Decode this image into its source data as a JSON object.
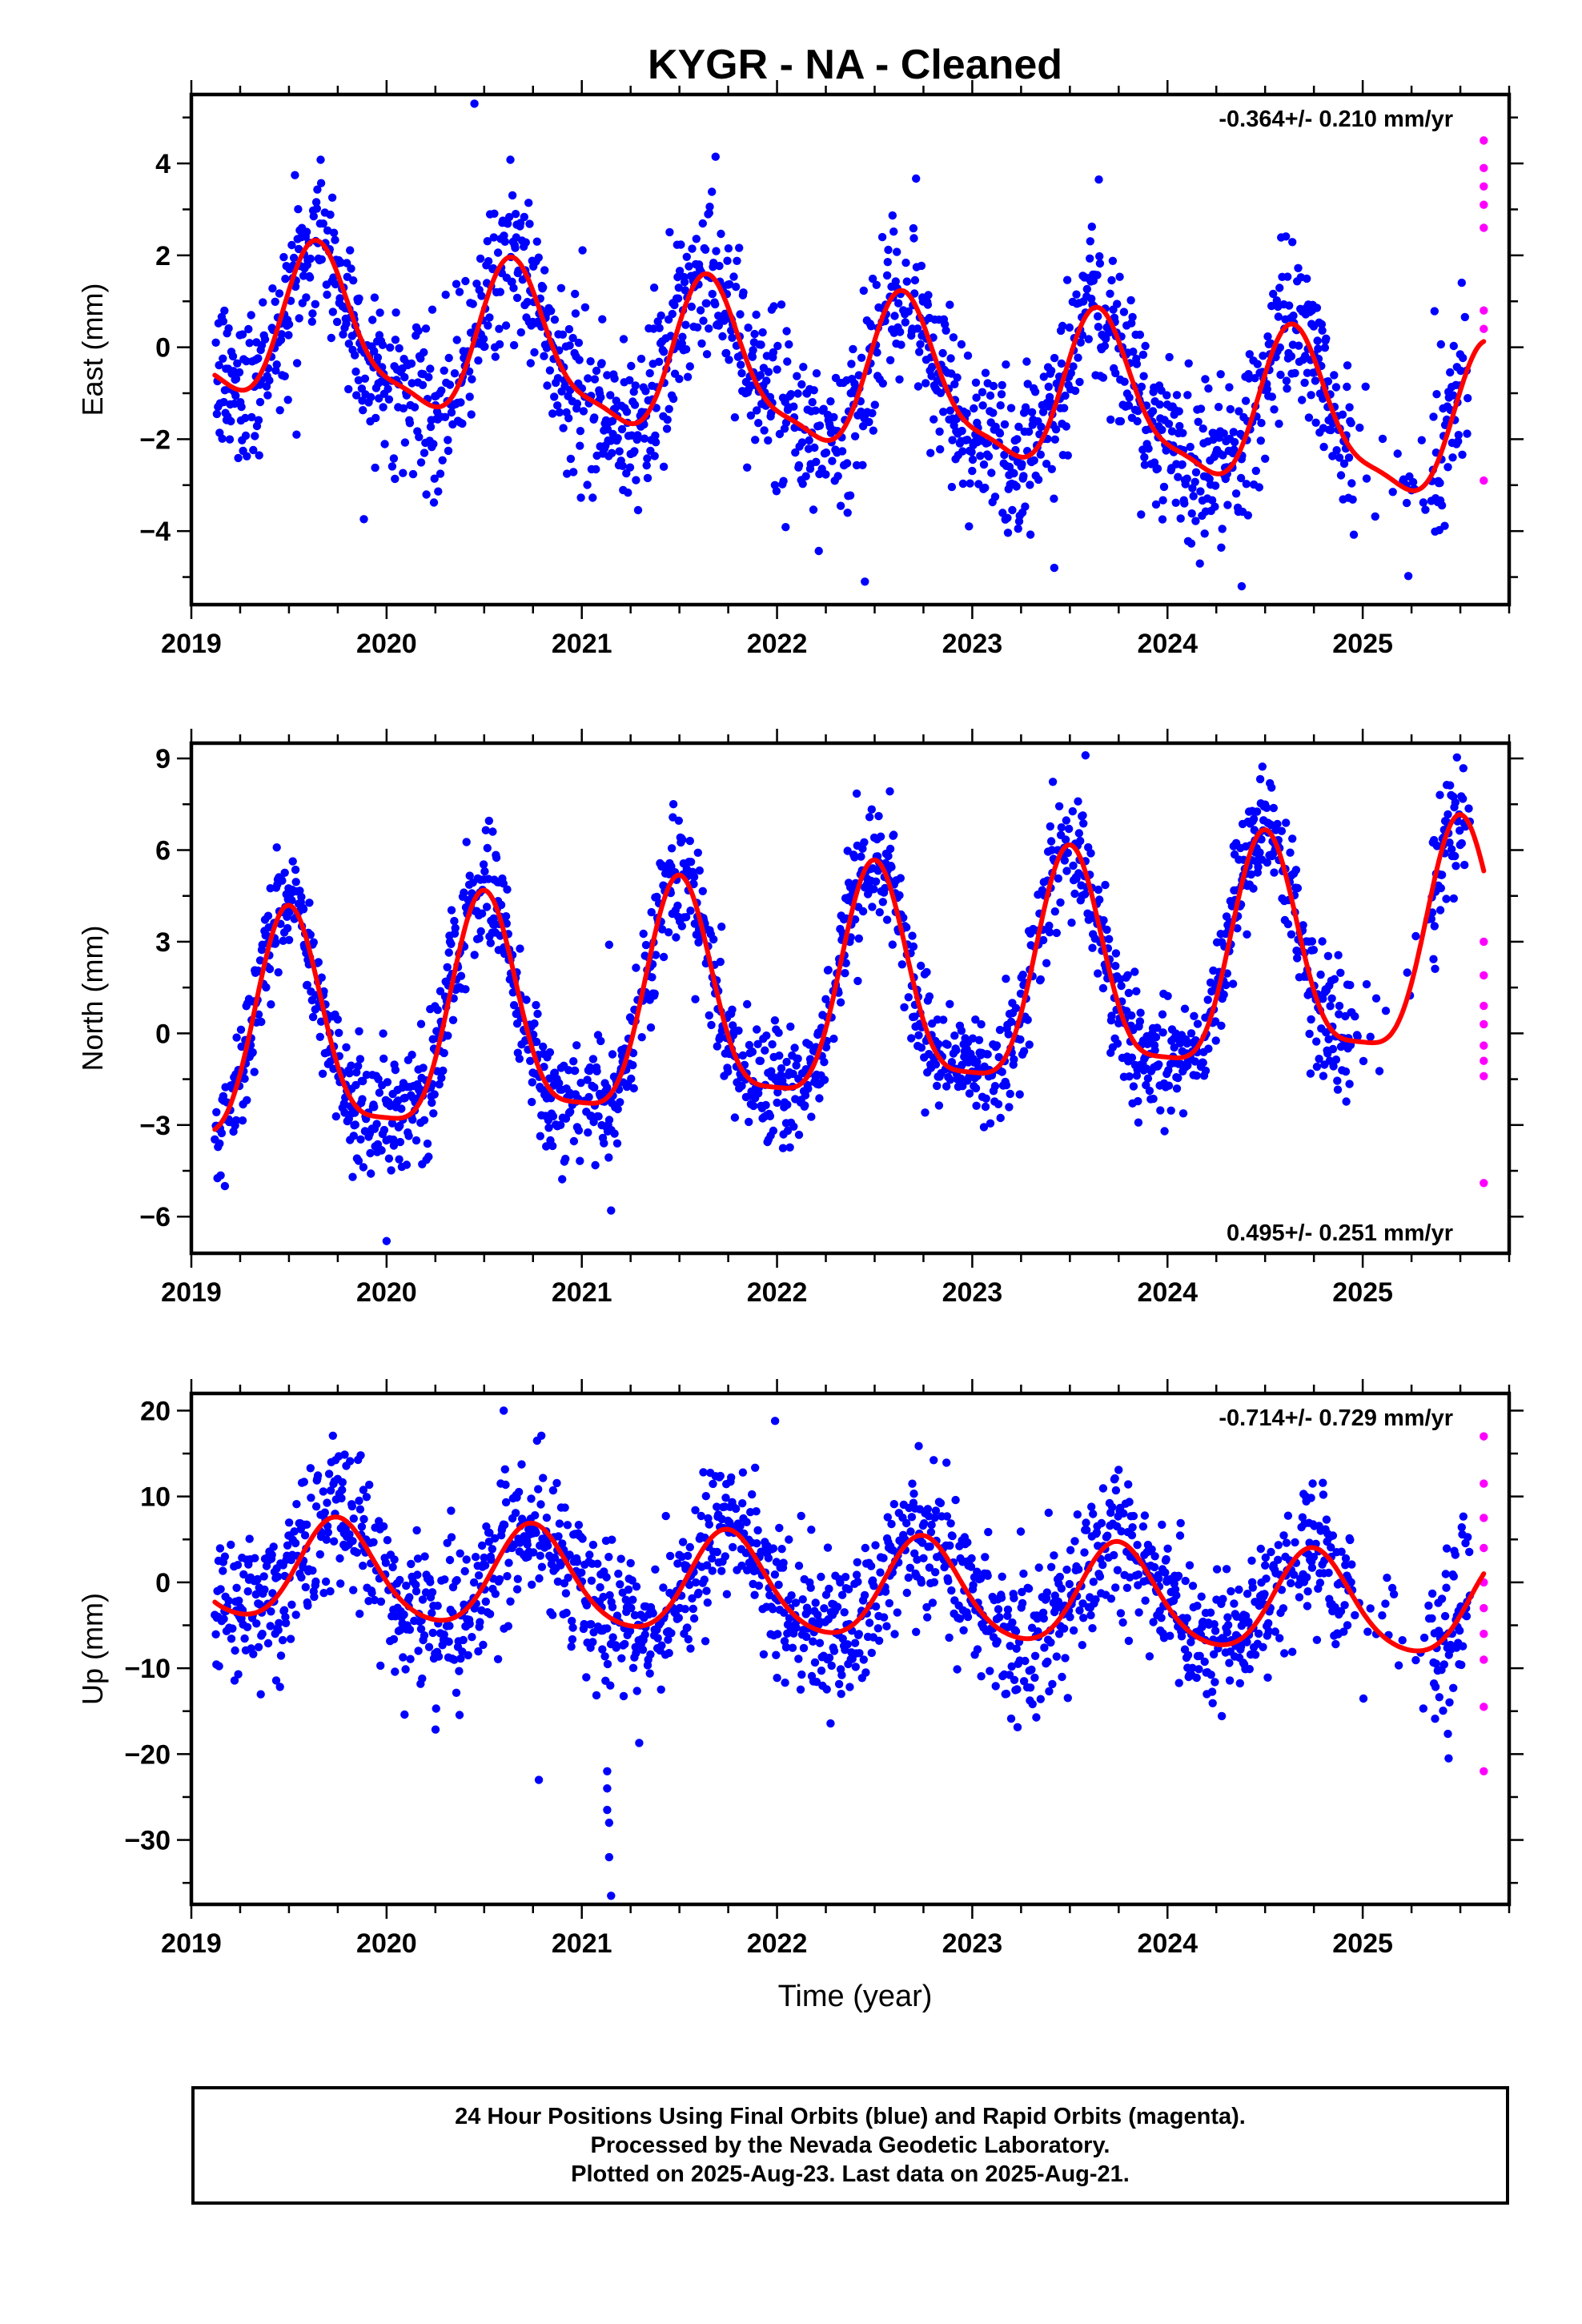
{
  "title": "KYGR  - NA - Cleaned",
  "x_axis_label": "Time (year)",
  "footer": {
    "line1": "24 Hour Positions Using Final Orbits (blue) and Rapid Orbits (magenta).",
    "line2": "Processed by the Nevada Geodetic Laboratory.",
    "line3": "Plotted on 2025-Aug-23. Last data on 2025-Aug-21."
  },
  "colors": {
    "final_orbits": "#0000ff",
    "rapid_orbits": "#ff00ff",
    "model_fit": "#ff0000",
    "axes": "#000000"
  },
  "chart_data": [
    {
      "type": "scatter",
      "name": "east",
      "ylabel": "East (mm)",
      "rate_text": "-0.364+/- 0.210 mm/yr",
      "rate_position": "top-right",
      "xlim": [
        2019.0,
        2025.75
      ],
      "ylim": [
        -5.6,
        5.5
      ],
      "x_ticks": [
        2019,
        2020,
        2021,
        2022,
        2023,
        2024,
        2025
      ],
      "y_ticks": [
        -4,
        -2,
        0,
        2,
        4
      ],
      "model": {
        "mean": 0.5,
        "trend": -0.364,
        "t0": 2019.1,
        "annual_amp": 1.6,
        "annual_peak": 2019.66,
        "semiannual_amp": 0.45,
        "semiannual_phase": 0.5
      },
      "final_orbits_range": [
        2019.12,
        2025.54
      ],
      "noise_sd": 0.9,
      "rapid_orbits": {
        "x": [
          2025.62,
          2025.62,
          2025.62,
          2025.62,
          2025.62,
          2025.62,
          2025.62,
          2025.62
        ],
        "y": [
          4.5,
          3.9,
          3.5,
          3.1,
          2.6,
          0.8,
          0.4,
          -2.9
        ]
      },
      "outliers": {
        "x": [
          2020.45,
          2022.45,
          2023.42,
          2021.42,
          2024.38
        ],
        "y": [
          5.3,
          -5.1,
          -4.8,
          -2.6,
          -5.2
        ]
      }
    },
    {
      "type": "scatter",
      "name": "north",
      "ylabel": "North (mm)",
      "rate_text": "0.495+/- 0.251 mm/yr",
      "rate_position": "bottom-right",
      "xlim": [
        2019.0,
        2025.75
      ],
      "ylim": [
        -7.2,
        9.5
      ],
      "x_ticks": [
        2019,
        2020,
        2021,
        2022,
        2023,
        2024,
        2025
      ],
      "y_ticks": [
        -6,
        -3,
        0,
        3,
        6,
        9
      ],
      "model": {
        "mean": -0.5,
        "trend": 0.495,
        "t0": 2019.1,
        "annual_amp": 3.6,
        "annual_peak": 2019.5,
        "semiannual_amp": 0.9,
        "semiannual_phase": 0.1
      },
      "final_orbits_range": [
        2019.12,
        2025.55
      ],
      "noise_sd": 1.0,
      "rapid_orbits": {
        "x": [
          2025.62,
          2025.62,
          2025.62,
          2025.62,
          2025.62,
          2025.62,
          2025.62,
          2025.62
        ],
        "y": [
          3.0,
          1.9,
          0.9,
          0.3,
          -0.4,
          -0.9,
          -1.4,
          -4.9
        ]
      },
      "outliers": {
        "x": [
          2020.0,
          2021.14,
          2021.15,
          2023.58
        ],
        "y": [
          -6.8,
          2.9,
          -5.8,
          9.1
        ]
      }
    },
    {
      "type": "scatter",
      "name": "up",
      "ylabel": "Up (mm)",
      "rate_text": "-0.714+/- 0.729 mm/yr",
      "rate_position": "top-right",
      "xlim": [
        2019.0,
        2025.75
      ],
      "ylim": [
        -37.5,
        22.0
      ],
      "x_ticks": [
        2019,
        2020,
        2021,
        2022,
        2023,
        2024,
        2025
      ],
      "y_ticks": [
        -30,
        -20,
        -10,
        0,
        10,
        20
      ],
      "model": {
        "mean": 1.5,
        "trend": -0.714,
        "t0": 2019.1,
        "annual_amp": 5.8,
        "annual_peak": 2019.75,
        "semiannual_amp": 0.8,
        "semiannual_phase": 0.3
      },
      "final_orbits_range": [
        2019.12,
        2025.55
      ],
      "noise_sd": 4.2,
      "rapid_orbits": {
        "x": [
          2025.62,
          2025.62,
          2025.62,
          2025.62,
          2025.62,
          2025.62,
          2025.62,
          2025.62,
          2025.62,
          2025.62
        ],
        "y": [
          17.0,
          11.5,
          7.5,
          4.0,
          0.0,
          -3.0,
          -6.0,
          -9.0,
          -14.5,
          -22.0
        ]
      },
      "outliers": {
        "x": [
          2020.6,
          2021.13,
          2021.13,
          2021.13,
          2021.14,
          2021.14,
          2021.15,
          2020.78,
          2021.99,
          2025.44
        ],
        "y": [
          20.0,
          -22.0,
          -24.0,
          -26.5,
          -28.0,
          -32.0,
          -36.5,
          -23.0,
          18.8,
          -20.5
        ]
      }
    }
  ]
}
